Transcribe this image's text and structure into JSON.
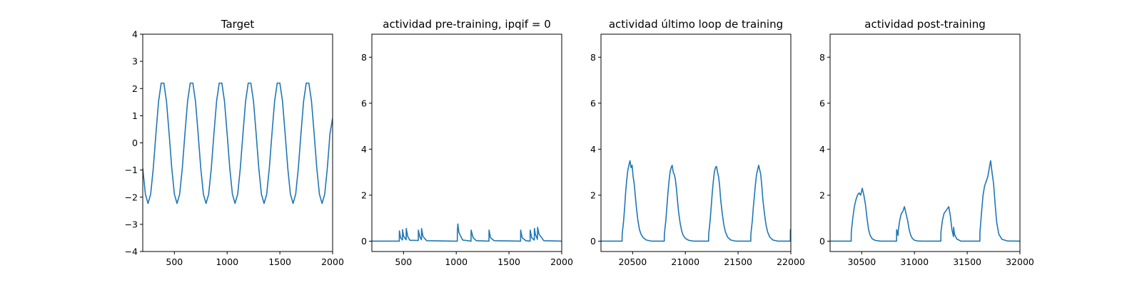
{
  "chart_data": [
    {
      "type": "line",
      "title": "Target",
      "xlabel": "",
      "ylabel": "",
      "xlim": [
        200,
        2000
      ],
      "ylim": [
        -4,
        4
      ],
      "xticks": [
        500,
        1000,
        1500,
        2000
      ],
      "yticks": [
        -4,
        -3,
        -2,
        -1,
        0,
        1,
        2,
        3,
        4
      ],
      "xtick_labels": [
        "500",
        "1000",
        "1500",
        "2000"
      ],
      "ytick_labels": [
        "−4",
        "−3",
        "−2",
        "−1",
        "0",
        "1",
        "2",
        "3",
        "4"
      ],
      "grid": false,
      "series": [
        {
          "color": "#1f77b4",
          "x": [
            200,
            225,
            250,
            275,
            300,
            325,
            350,
            375,
            400,
            425,
            450,
            475,
            500,
            525,
            550,
            575,
            600,
            625,
            650,
            675,
            700,
            725,
            750,
            775,
            800,
            825,
            850,
            875,
            900,
            925,
            950,
            975,
            1000,
            1025,
            1050,
            1075,
            1100,
            1125,
            1150,
            1175,
            1200,
            1225,
            1250,
            1275,
            1300,
            1325,
            1350,
            1375,
            1400,
            1425,
            1450,
            1475,
            1500,
            1525,
            1550,
            1575,
            1600,
            1625,
            1650,
            1675,
            1700,
            1725,
            1750,
            1775,
            1800,
            1825,
            1850,
            1875,
            1900,
            1925,
            1950,
            1975,
            2000
          ],
          "y": [
            -0.93,
            -1.89,
            -2.23,
            -1.89,
            -0.93,
            0.34,
            1.53,
            2.2,
            2.2,
            1.53,
            0.34,
            -0.93,
            -1.89,
            -2.23,
            -1.89,
            -0.93,
            0.34,
            1.53,
            2.2,
            2.2,
            1.53,
            0.34,
            -0.93,
            -1.89,
            -2.23,
            -1.89,
            -0.93,
            0.34,
            1.53,
            2.2,
            2.2,
            1.53,
            0.34,
            -0.93,
            -1.89,
            -2.23,
            -1.89,
            -0.93,
            0.34,
            1.53,
            2.2,
            2.2,
            1.53,
            0.34,
            -0.93,
            -1.89,
            -2.23,
            -1.89,
            -0.93,
            0.34,
            1.53,
            2.2,
            2.2,
            1.53,
            0.34,
            -0.93,
            -1.89,
            -2.23,
            -1.89,
            -0.93,
            0.34,
            1.53,
            2.2,
            2.2,
            1.53,
            0.34,
            -0.93,
            -1.89,
            -2.23,
            -1.89,
            -0.93,
            0.34,
            0.9
          ]
        }
      ]
    },
    {
      "type": "line",
      "title": "actividad pre-training, ipqif = 0",
      "xlabel": "",
      "ylabel": "",
      "xlim": [
        200,
        2000
      ],
      "ylim": [
        -0.45,
        9
      ],
      "xticks": [
        500,
        1000,
        1500,
        2000
      ],
      "yticks": [
        0,
        2,
        4,
        6,
        8
      ],
      "xtick_labels": [
        "500",
        "1000",
        "1500",
        "2000"
      ],
      "ytick_labels": [
        "0",
        "2",
        "4",
        "6",
        "8"
      ],
      "grid": false,
      "series": [
        {
          "color": "#1f77b4",
          "x": [
            200,
            460,
            461,
            472,
            490,
            491,
            500,
            525,
            526,
            540,
            560,
            640,
            641,
            655,
            670,
            671,
            685,
            720,
            1010,
            1011,
            1015,
            1025,
            1060,
            1140,
            1141,
            1160,
            1190,
            1310,
            1311,
            1325,
            1360,
            1610,
            1611,
            1625,
            1660,
            1700,
            1701,
            1715,
            1740,
            1741,
            1750,
            1770,
            1771,
            1785,
            1830,
            2000
          ],
          "y": [
            0,
            0,
            0.45,
            0.15,
            0.05,
            0.5,
            0.22,
            0.06,
            0.55,
            0.2,
            0.04,
            0.03,
            0.48,
            0.18,
            0.06,
            0.55,
            0.2,
            0.02,
            0,
            0.45,
            0.75,
            0.38,
            0.05,
            0,
            0.48,
            0.15,
            0.02,
            0,
            0.48,
            0.15,
            0.02,
            0,
            0.48,
            0.15,
            0.02,
            0,
            0.48,
            0.15,
            0.05,
            0.55,
            0.3,
            0.08,
            0.6,
            0.3,
            0.02,
            0
          ]
        }
      ]
    },
    {
      "type": "line",
      "title": "actividad último loop de training",
      "xlabel": "",
      "ylabel": "",
      "xlim": [
        20200,
        22000
      ],
      "ylim": [
        -0.45,
        9
      ],
      "xticks": [
        20500,
        21000,
        21500,
        22000
      ],
      "yticks": [
        0,
        2,
        4,
        6,
        8
      ],
      "xtick_labels": [
        "20500",
        "21000",
        "21500",
        "22000"
      ],
      "ytick_labels": [
        "0",
        "2",
        "4",
        "6",
        "8"
      ],
      "grid": false,
      "series": [
        {
          "color": "#1f77b4",
          "x": [
            20200,
            20400,
            20401,
            20415,
            20425,
            20435,
            20445,
            20455,
            20465,
            20475,
            20485,
            20495,
            20505,
            20515,
            20525,
            20535,
            20550,
            20565,
            20580,
            20600,
            20630,
            20680,
            20800,
            20801,
            20815,
            20825,
            20835,
            20845,
            20855,
            20865,
            20875,
            20885,
            20895,
            20905,
            20915,
            20925,
            20935,
            20950,
            20965,
            20980,
            21000,
            21030,
            21080,
            21220,
            21221,
            21235,
            21245,
            21255,
            21265,
            21275,
            21285,
            21295,
            21305,
            21315,
            21325,
            21335,
            21350,
            21365,
            21380,
            21400,
            21430,
            21480,
            21620,
            21621,
            21635,
            21645,
            21655,
            21665,
            21675,
            21685,
            21695,
            21705,
            21715,
            21725,
            21735,
            21750,
            21765,
            21780,
            21800,
            21830,
            21880,
            21995,
            21996,
            22000
          ],
          "y": [
            0,
            0,
            0.3,
            0.9,
            1.5,
            2.2,
            2.7,
            3.1,
            3.3,
            3.5,
            3.2,
            3.3,
            2.8,
            2.5,
            2.0,
            1.5,
            0.9,
            0.5,
            0.3,
            0.15,
            0.05,
            0,
            0,
            0.3,
            0.9,
            1.5,
            2.1,
            2.6,
            3.0,
            3.2,
            3.3,
            3.0,
            2.9,
            2.7,
            2.3,
            1.8,
            1.3,
            0.8,
            0.45,
            0.25,
            0.12,
            0.04,
            0,
            0,
            0.3,
            0.9,
            1.5,
            2.1,
            2.6,
            3.0,
            3.2,
            3.25,
            3.0,
            2.8,
            2.4,
            1.8,
            1.2,
            0.7,
            0.4,
            0.18,
            0.05,
            0,
            0,
            0.3,
            0.9,
            1.5,
            2.0,
            2.5,
            2.9,
            3.1,
            3.3,
            3.1,
            2.9,
            2.4,
            1.8,
            1.2,
            0.7,
            0.4,
            0.18,
            0.05,
            0,
            0,
            0.5,
            0.5
          ]
        }
      ]
    },
    {
      "type": "line",
      "title": "actividad post-training",
      "xlabel": "",
      "ylabel": "",
      "xlim": [
        30200,
        32000
      ],
      "ylim": [
        -0.45,
        9
      ],
      "xticks": [
        30500,
        31000,
        31500,
        32000
      ],
      "yticks": [
        0,
        2,
        4,
        6,
        8
      ],
      "xtick_labels": [
        "30500",
        "31000",
        "31500",
        "32000"
      ],
      "ytick_labels": [
        "0",
        "2",
        "4",
        "6",
        "8"
      ],
      "grid": false,
      "series": [
        {
          "color": "#1f77b4",
          "x": [
            30200,
            30400,
            30401,
            30415,
            30430,
            30445,
            30460,
            30475,
            30490,
            30505,
            30520,
            30535,
            30550,
            30565,
            30580,
            30600,
            30630,
            30680,
            30830,
            30831,
            30845,
            30846,
            30860,
            30875,
            30890,
            30905,
            30920,
            30935,
            30950,
            30965,
            30980,
            31000,
            31030,
            31080,
            31250,
            31251,
            31265,
            31280,
            31295,
            31310,
            31325,
            31340,
            31355,
            31370,
            31371,
            31380,
            31400,
            31440,
            31620,
            31621,
            31635,
            31650,
            31665,
            31680,
            31695,
            31710,
            31722,
            31735,
            31750,
            31765,
            31780,
            31800,
            31830,
            31880,
            32000
          ],
          "y": [
            0,
            0,
            0.4,
            1.0,
            1.5,
            1.8,
            2.0,
            2.1,
            2.0,
            2.3,
            2.0,
            1.6,
            1.0,
            0.5,
            0.25,
            0.1,
            0.03,
            0,
            0,
            0.5,
            0.25,
            0.45,
            0.9,
            1.2,
            1.3,
            1.5,
            1.2,
            0.9,
            0.5,
            0.25,
            0.12,
            0.04,
            0.01,
            0,
            0,
            0.4,
            0.9,
            1.2,
            1.3,
            1.4,
            1.5,
            1.1,
            0.5,
            0.2,
            0.6,
            0.3,
            0.1,
            0,
            0,
            0.4,
            1.2,
            2.0,
            2.4,
            2.6,
            2.8,
            3.2,
            3.5,
            3.0,
            2.5,
            1.6,
            0.8,
            0.3,
            0.08,
            0.01,
            0
          ]
        }
      ]
    }
  ]
}
